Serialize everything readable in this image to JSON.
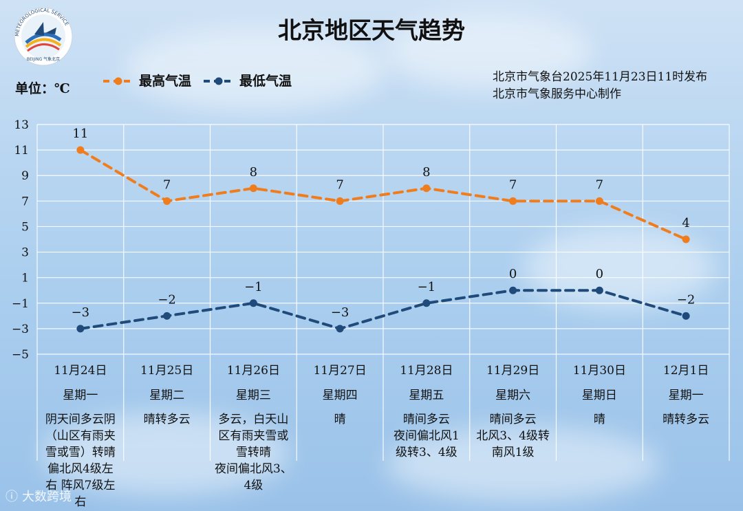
{
  "chart_data": {
    "type": "line",
    "title": "北京地区天气趋势",
    "unit_label": "单位：℃",
    "publisher": [
      "北京市气象台2025年11月23日11时发布",
      "北京市气象服务中心制作"
    ],
    "ylim": [
      -5,
      13
    ],
    "yticks": [
      13,
      11,
      9,
      7,
      5,
      3,
      1,
      -1,
      -3,
      -5
    ],
    "ytick_labels": [
      "13",
      "11",
      "9",
      "7",
      "5",
      "3",
      "1",
      "−1",
      "−3",
      "−5"
    ],
    "categories": [
      "11月24日",
      "11月25日",
      "11月26日",
      "11月27日",
      "11月28日",
      "11月29日",
      "11月30日",
      "12月1日"
    ],
    "weekdays": [
      "星期一",
      "星期二",
      "星期三",
      "星期四",
      "星期五",
      "星期六",
      "星期日",
      "星期一"
    ],
    "weather": [
      [
        "阴天间多云阴",
        "（山区有雨夹",
        "雪或雪）转晴",
        "偏北风4级左",
        "右 阵风7级左",
        "右"
      ],
      [
        "晴转多云"
      ],
      [
        "多云，白天山",
        "区有雨夹雪或",
        "雪转晴",
        "夜间偏北风3、",
        "4级"
      ],
      [
        "晴"
      ],
      [
        "晴间多云",
        "夜间偏北风1",
        "级转3、4级"
      ],
      [
        "晴间多云",
        "北风3、4级转",
        "南风1级"
      ],
      [
        "晴"
      ],
      [
        "晴转多云"
      ]
    ],
    "series": [
      {
        "name": "最高气温",
        "color": "#f07d1d",
        "values": [
          11,
          7,
          8,
          7,
          8,
          7,
          7,
          4
        ],
        "labels": [
          "11",
          "7",
          "8",
          "7",
          "8",
          "7",
          "7",
          "4"
        ]
      },
      {
        "name": "最低气温",
        "color": "#1f4a7a",
        "values": [
          -3,
          -2,
          -1,
          -3,
          -1,
          0,
          0,
          -2
        ],
        "labels": [
          "−3",
          "−2",
          "−1",
          "−3",
          "−1",
          "0",
          "0",
          "−2"
        ]
      }
    ]
  },
  "logo": {
    "ring_text": "METEOROLOGICAL SERVICE",
    "sub_text": "BEIJING 气象北京"
  },
  "watermark": {
    "text": "大数跨境"
  }
}
